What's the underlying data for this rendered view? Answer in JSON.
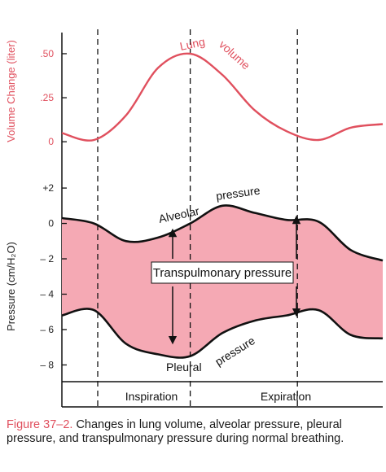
{
  "chart_data": {
    "type": "line",
    "x": [
      0,
      0.5,
      1,
      1.5,
      2,
      2.5,
      3,
      3.5,
      4,
      4.5,
      5
    ],
    "top_axis": {
      "ylabel": "Volume Change (liter)",
      "ticks": [
        ".50",
        ".25",
        "0"
      ],
      "tick_values": [
        0.5,
        0.25,
        0
      ],
      "ylim": [
        -0.05,
        0.62
      ],
      "series": [
        {
          "name": "Lung volume",
          "name_parts": [
            "Lung",
            "volume"
          ],
          "values": [
            0.05,
            0.01,
            0.15,
            0.42,
            0.5,
            0.38,
            0.18,
            0.06,
            0.01,
            0.08,
            0.1
          ]
        }
      ]
    },
    "bottom_axis": {
      "ylabel": "Pressure (cm/H₂O)",
      "ticks": [
        "+2",
        "0",
        "– 2",
        "– 4",
        "– 6",
        "– 8"
      ],
      "tick_values": [
        2,
        0,
        -2,
        -4,
        -6,
        -8
      ],
      "ylim": [
        -8.9,
        3.2
      ],
      "series": [
        {
          "name": "Alveolar pressure",
          "name_parts": [
            "Alveolar",
            "pressure"
          ],
          "values": [
            0.3,
            0.0,
            -1.0,
            -0.8,
            0.0,
            1.0,
            0.6,
            0.2,
            0.1,
            -1.5,
            -2.1
          ]
        },
        {
          "name": "Pleural pressure",
          "name_parts": [
            "Pleural",
            "pressure"
          ],
          "values": [
            -5.2,
            -4.9,
            -6.8,
            -7.4,
            -7.5,
            -6.2,
            -5.5,
            -5.2,
            -4.9,
            -6.3,
            -6.5
          ]
        }
      ],
      "band_label": "Transpulmonary pressure"
    },
    "phases": [
      "Inspiration",
      "Expiration"
    ],
    "phase_boundaries": [
      0,
      2,
      4
    ]
  },
  "caption": {
    "figure_label": "Figure 37–2.",
    "text": " Changes in lung volume, alveolar pressure, pleural pressure, and transpulmonary pressure during normal breathing."
  },
  "colors": {
    "accent": "#e0505e",
    "band": "#f5a9b4",
    "ink": "#111111"
  }
}
